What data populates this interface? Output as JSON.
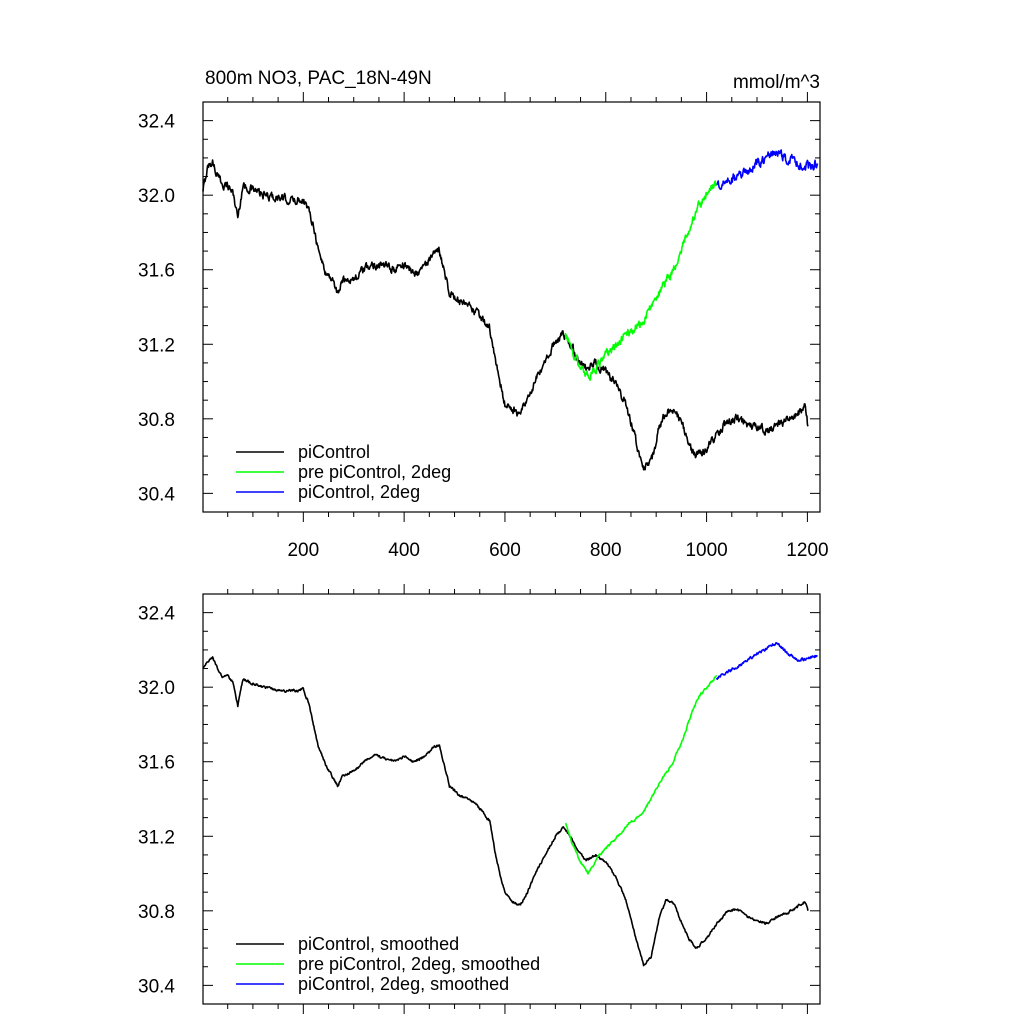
{
  "figure": {
    "title_left": "800m NO3, PAC_18N-49N",
    "title_right": "mmol/m^3"
  },
  "chart_data": [
    {
      "type": "line",
      "panel": "top",
      "title": "800m NO3, PAC_18N-49N",
      "units": "mmol/m^3",
      "xlabel": "",
      "ylabel": "",
      "xlim": [
        1,
        1225
      ],
      "ylim": [
        30.3,
        32.5
      ],
      "x_ticks": [
        200,
        400,
        600,
        800,
        1000,
        1200
      ],
      "y_ticks": [
        "32.4",
        "32.0",
        "31.6",
        "31.2",
        "30.8",
        "30.4"
      ],
      "show_x_tick_labels": true,
      "grid": false,
      "legend_position": "bottom-left",
      "series": [
        {
          "name": "piControl",
          "color": "#000000",
          "noise": 0.04,
          "points": [
            [
              1,
              32.02
            ],
            [
              10,
              32.15
            ],
            [
              20,
              32.18
            ],
            [
              30,
              32.1
            ],
            [
              40,
              32.06
            ],
            [
              50,
              32.05
            ],
            [
              60,
              32.02
            ],
            [
              70,
              31.88
            ],
            [
              80,
              32.05
            ],
            [
              100,
              32.03
            ],
            [
              120,
              32.0
            ],
            [
              140,
              31.99
            ],
            [
              160,
              31.98
            ],
            [
              180,
              31.97
            ],
            [
              200,
              31.98
            ],
            [
              210,
              31.92
            ],
            [
              220,
              31.85
            ],
            [
              230,
              31.7
            ],
            [
              245,
              31.58
            ],
            [
              258,
              31.55
            ],
            [
              268,
              31.47
            ],
            [
              280,
              31.55
            ],
            [
              300,
              31.55
            ],
            [
              320,
              31.6
            ],
            [
              340,
              31.63
            ],
            [
              360,
              31.62
            ],
            [
              380,
              31.6
            ],
            [
              400,
              31.63
            ],
            [
              420,
              31.58
            ],
            [
              440,
              31.62
            ],
            [
              460,
              31.68
            ],
            [
              470,
              31.7
            ],
            [
              480,
              31.6
            ],
            [
              490,
              31.48
            ],
            [
              510,
              31.42
            ],
            [
              530,
              31.4
            ],
            [
              550,
              31.35
            ],
            [
              570,
              31.28
            ],
            [
              580,
              31.12
            ],
            [
              590,
              31.0
            ],
            [
              600,
              30.88
            ],
            [
              615,
              30.85
            ],
            [
              630,
              30.82
            ],
            [
              645,
              30.9
            ],
            [
              660,
              31.0
            ],
            [
              680,
              31.1
            ],
            [
              700,
              31.22
            ],
            [
              715,
              31.25
            ],
            [
              730,
              31.2
            ],
            [
              745,
              31.12
            ],
            [
              760,
              31.07
            ],
            [
              780,
              31.1
            ],
            [
              800,
              31.05
            ],
            [
              820,
              30.98
            ],
            [
              840,
              30.88
            ],
            [
              860,
              30.68
            ],
            [
              875,
              30.53
            ],
            [
              890,
              30.56
            ],
            [
              905,
              30.74
            ],
            [
              920,
              30.84
            ],
            [
              935,
              30.86
            ],
            [
              950,
              30.78
            ],
            [
              965,
              30.65
            ],
            [
              980,
              30.6
            ],
            [
              1000,
              30.64
            ],
            [
              1020,
              30.72
            ],
            [
              1040,
              30.78
            ],
            [
              1060,
              30.8
            ],
            [
              1080,
              30.77
            ],
            [
              1100,
              30.76
            ],
            [
              1120,
              30.73
            ],
            [
              1140,
              30.77
            ],
            [
              1160,
              30.79
            ],
            [
              1180,
              30.83
            ],
            [
              1195,
              30.86
            ],
            [
              1201,
              30.76
            ]
          ]
        },
        {
          "name": "pre piControl, 2deg",
          "color": "#00ff00",
          "noise": 0.045,
          "points": [
            [
              720,
              31.26
            ],
            [
              735,
              31.15
            ],
            [
              750,
              31.08
            ],
            [
              765,
              31.03
            ],
            [
              780,
              31.07
            ],
            [
              795,
              31.12
            ],
            [
              810,
              31.17
            ],
            [
              830,
              31.22
            ],
            [
              850,
              31.28
            ],
            [
              870,
              31.3
            ],
            [
              890,
              31.4
            ],
            [
              910,
              31.5
            ],
            [
              930,
              31.58
            ],
            [
              950,
              31.7
            ],
            [
              970,
              31.86
            ],
            [
              985,
              31.94
            ],
            [
              1000,
              32.02
            ],
            [
              1020,
              32.06
            ]
          ]
        },
        {
          "name": "piControl, 2deg",
          "color": "#0000ff",
          "noise": 0.05,
          "points": [
            [
              1020,
              32.06
            ],
            [
              1040,
              32.08
            ],
            [
              1060,
              32.1
            ],
            [
              1080,
              32.13
            ],
            [
              1100,
              32.17
            ],
            [
              1120,
              32.2
            ],
            [
              1140,
              32.24
            ],
            [
              1160,
              32.19
            ],
            [
              1180,
              32.17
            ],
            [
              1200,
              32.15
            ],
            [
              1220,
              32.17
            ]
          ]
        }
      ]
    },
    {
      "type": "line",
      "panel": "bottom",
      "xlabel": "",
      "ylabel": "",
      "xlim": [
        1,
        1225
      ],
      "ylim": [
        30.3,
        32.5
      ],
      "x_ticks": [
        200,
        400,
        600,
        800,
        1000,
        1200
      ],
      "y_ticks": [
        "32.4",
        "32.0",
        "31.6",
        "31.2",
        "30.8",
        "30.4"
      ],
      "show_x_tick_labels": false,
      "grid": false,
      "legend_position": "bottom-left",
      "series": [
        {
          "name": "piControl, smoothed",
          "color": "#000000",
          "noise": 0.012,
          "points": [
            [
              1,
              32.1
            ],
            [
              10,
              32.14
            ],
            [
              20,
              32.16
            ],
            [
              30,
              32.1
            ],
            [
              40,
              32.05
            ],
            [
              50,
              32.06
            ],
            [
              60,
              32.03
            ],
            [
              70,
              31.9
            ],
            [
              80,
              32.04
            ],
            [
              100,
              32.02
            ],
            [
              120,
              32.0
            ],
            [
              140,
              31.99
            ],
            [
              160,
              31.98
            ],
            [
              180,
              31.98
            ],
            [
              200,
              31.99
            ],
            [
              210,
              31.92
            ],
            [
              220,
              31.8
            ],
            [
              230,
              31.68
            ],
            [
              245,
              31.58
            ],
            [
              258,
              31.52
            ],
            [
              268,
              31.47
            ],
            [
              280,
              31.53
            ],
            [
              300,
              31.55
            ],
            [
              320,
              31.6
            ],
            [
              340,
              31.64
            ],
            [
              360,
              31.62
            ],
            [
              380,
              31.6
            ],
            [
              400,
              31.63
            ],
            [
              420,
              31.6
            ],
            [
              440,
              31.63
            ],
            [
              460,
              31.68
            ],
            [
              470,
              31.69
            ],
            [
              480,
              31.58
            ],
            [
              490,
              31.47
            ],
            [
              510,
              31.42
            ],
            [
              530,
              31.4
            ],
            [
              550,
              31.35
            ],
            [
              570,
              31.28
            ],
            [
              580,
              31.12
            ],
            [
              590,
              31.0
            ],
            [
              600,
              30.9
            ],
            [
              615,
              30.85
            ],
            [
              630,
              30.83
            ],
            [
              645,
              30.9
            ],
            [
              660,
              31.0
            ],
            [
              680,
              31.1
            ],
            [
              700,
              31.2
            ],
            [
              715,
              31.25
            ],
            [
              730,
              31.2
            ],
            [
              745,
              31.12
            ],
            [
              760,
              31.07
            ],
            [
              780,
              31.1
            ],
            [
              800,
              31.06
            ],
            [
              820,
              30.98
            ],
            [
              840,
              30.86
            ],
            [
              860,
              30.65
            ],
            [
              875,
              30.51
            ],
            [
              890,
              30.55
            ],
            [
              905,
              30.75
            ],
            [
              920,
              30.86
            ],
            [
              935,
              30.84
            ],
            [
              950,
              30.74
            ],
            [
              965,
              30.65
            ],
            [
              980,
              30.6
            ],
            [
              1000,
              30.65
            ],
            [
              1020,
              30.73
            ],
            [
              1040,
              30.79
            ],
            [
              1060,
              30.81
            ],
            [
              1080,
              30.77
            ],
            [
              1100,
              30.75
            ],
            [
              1120,
              30.73
            ],
            [
              1140,
              30.77
            ],
            [
              1160,
              30.79
            ],
            [
              1180,
              30.82
            ],
            [
              1195,
              30.85
            ],
            [
              1201,
              30.8
            ]
          ]
        },
        {
          "name": "pre piControl, 2deg, smoothed",
          "color": "#00ff00",
          "noise": 0.012,
          "points": [
            [
              720,
              31.27
            ],
            [
              735,
              31.15
            ],
            [
              750,
              31.06
            ],
            [
              765,
              31.0
            ],
            [
              780,
              31.07
            ],
            [
              795,
              31.12
            ],
            [
              810,
              31.16
            ],
            [
              830,
              31.22
            ],
            [
              850,
              31.28
            ],
            [
              870,
              31.31
            ],
            [
              890,
              31.4
            ],
            [
              910,
              31.5
            ],
            [
              930,
              31.58
            ],
            [
              950,
              31.7
            ],
            [
              970,
              31.86
            ],
            [
              985,
              31.95
            ],
            [
              1000,
              32.0
            ],
            [
              1020,
              32.06
            ]
          ]
        },
        {
          "name": "piControl, 2deg, smoothed",
          "color": "#0000ff",
          "noise": 0.015,
          "points": [
            [
              1020,
              32.05
            ],
            [
              1040,
              32.08
            ],
            [
              1060,
              32.11
            ],
            [
              1080,
              32.14
            ],
            [
              1100,
              32.18
            ],
            [
              1120,
              32.21
            ],
            [
              1140,
              32.24
            ],
            [
              1160,
              32.18
            ],
            [
              1180,
              32.15
            ],
            [
              1200,
              32.15
            ],
            [
              1220,
              32.17
            ]
          ]
        }
      ]
    }
  ]
}
